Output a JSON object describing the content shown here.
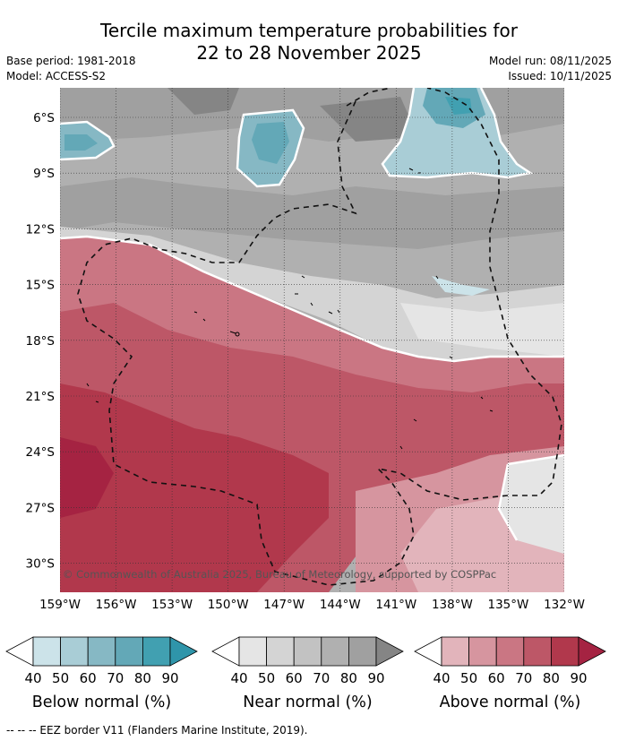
{
  "title": {
    "line1": "Tercile maximum temperature probabilities for",
    "line2": "22 to 28 November 2025"
  },
  "meta": {
    "base_period": "Base period: 1981-2018",
    "model": "Model: ACCESS-S2",
    "model_run": "Model run: 08/11/2025",
    "issued": "Issued: 10/11/2025"
  },
  "map": {
    "lat_labels": [
      "6°S",
      "9°S",
      "12°S",
      "15°S",
      "18°S",
      "21°S",
      "24°S",
      "27°S",
      "30°S"
    ],
    "lon_labels": [
      "159°W",
      "156°W",
      "153°W",
      "150°W",
      "147°W",
      "144°W",
      "141°W",
      "138°W",
      "135°W",
      "132°W"
    ],
    "copyright": "© Commonwealth of Australia 2025, Bureau of Meteorology, supported by COSPPac"
  },
  "legends": [
    {
      "title": "Below normal (%)",
      "ticks": [
        "40",
        "50",
        "60",
        "70",
        "80",
        "90"
      ],
      "colors": [
        "#ffffff",
        "#cce3e9",
        "#a9cdd6",
        "#86b8c4",
        "#63a8b7",
        "#41a0b1",
        "#2f95aa"
      ]
    },
    {
      "title": "Near normal (%)",
      "ticks": [
        "40",
        "50",
        "60",
        "70",
        "80",
        "90"
      ],
      "colors": [
        "#ffffff",
        "#e5e5e5",
        "#d4d4d4",
        "#c2c2c2",
        "#b0b0b0",
        "#a0a0a0",
        "#858585"
      ]
    },
    {
      "title": "Above normal (%)",
      "ticks": [
        "40",
        "50",
        "60",
        "70",
        "80",
        "90"
      ],
      "colors": [
        "#ffffff",
        "#e2b4bb",
        "#d6959f",
        "#ca7683",
        "#bd5767",
        "#b1384c",
        "#a52342"
      ]
    }
  ],
  "footnote": "--  --  -- EEZ border V11 (Flanders Marine Institute, 2019)."
}
